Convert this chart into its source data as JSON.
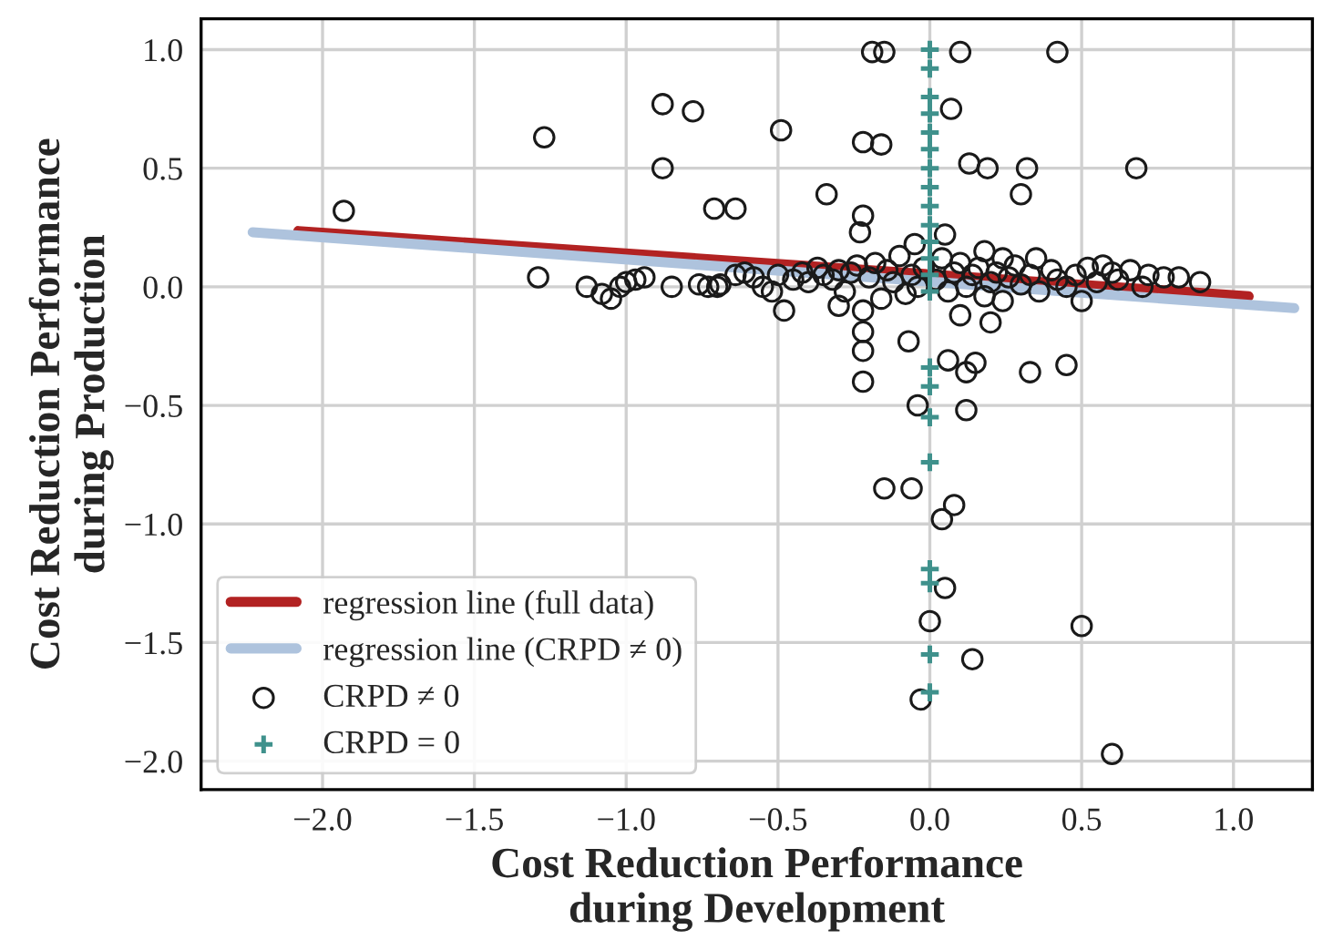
{
  "chart_data": {
    "type": "scatter",
    "xlabel": "Cost Reduction Performance\nduring Development",
    "ylabel": "Cost Reduction Performance\nduring Production",
    "xlim": [
      -2.4,
      1.26
    ],
    "ylim": [
      -2.12,
      1.13
    ],
    "xticks": [
      {
        "value": -2.0,
        "label": "−2.0"
      },
      {
        "value": -1.5,
        "label": "−1.5"
      },
      {
        "value": -1.0,
        "label": "−1.0"
      },
      {
        "value": -0.5,
        "label": "−0.5"
      },
      {
        "value": 0.0,
        "label": "0.0"
      },
      {
        "value": 0.5,
        "label": "0.5"
      },
      {
        "value": 1.0,
        "label": "1.0"
      }
    ],
    "yticks": [
      {
        "value": -2.0,
        "label": "−2.0"
      },
      {
        "value": -1.5,
        "label": "−1.5"
      },
      {
        "value": -1.0,
        "label": "−1.0"
      },
      {
        "value": -0.5,
        "label": "−0.5"
      },
      {
        "value": 0.0,
        "label": "0.0"
      },
      {
        "value": 0.5,
        "label": "0.5"
      },
      {
        "value": 1.0,
        "label": "1.0"
      }
    ],
    "grid": true,
    "legend": "bottom left",
    "series": [
      {
        "name": "regression line (full data)",
        "type": "line",
        "color": "#b22222",
        "marker": "none",
        "line_style": "solid",
        "x": [
          -2.08,
          1.05
        ],
        "values": [
          0.235,
          -0.04
        ]
      },
      {
        "name": "regression line (CRPD ≠ 0)",
        "type": "line",
        "color": "#aec3dd",
        "marker": "none",
        "line_style": "solid",
        "x": [
          -2.23,
          1.2
        ],
        "values": [
          0.23,
          -0.09
        ]
      },
      {
        "name": "CRPD ≠ 0",
        "color": "#1a1a1a",
        "marker": "circle",
        "x": [
          -1.93,
          -1.27,
          -1.29,
          -0.88,
          -0.78,
          -0.88,
          -0.71,
          -0.64,
          -0.49,
          -0.19,
          -0.15,
          0.1,
          0.42,
          0.07,
          -0.22,
          -0.16,
          0.32,
          0.68,
          0.13,
          0.19,
          0.3,
          -0.34,
          -0.22,
          -0.23,
          -0.22,
          -0.07,
          -0.22,
          0.06,
          0.12,
          0.15,
          0.33,
          0.45,
          -0.22,
          -0.04,
          0.12,
          -0.15,
          -0.06,
          0.08,
          0.04,
          0.05,
          0.0,
          0.5,
          0.14,
          -0.03,
          0.6,
          -1.13,
          -1.08,
          -1.05,
          -1.02,
          -1.0,
          -0.97,
          -0.94,
          -0.85,
          -0.76,
          -0.73,
          -0.7,
          -0.69,
          -0.64,
          -0.61,
          -0.58,
          -0.55,
          -0.52,
          -0.5,
          -0.48,
          -0.45,
          -0.42,
          -0.4,
          -0.37,
          -0.35,
          -0.32,
          -0.3,
          -0.28,
          -0.26,
          -0.24,
          -0.22,
          -0.2,
          -0.18,
          -0.16,
          -0.14,
          -0.12,
          -0.1,
          -0.08,
          -0.06,
          -0.04,
          -0.02,
          0.02,
          0.04,
          0.06,
          0.08,
          0.1,
          0.12,
          0.14,
          0.16,
          0.18,
          0.2,
          0.22,
          0.24,
          0.26,
          0.28,
          0.3,
          0.33,
          0.36,
          0.4,
          0.42,
          0.45,
          0.48,
          0.52,
          0.55,
          0.57,
          0.6,
          0.62,
          0.66,
          0.7,
          0.72,
          0.77,
          0.82,
          0.89,
          0.24,
          0.05,
          -0.05,
          0.18,
          0.35,
          0.1,
          -0.3,
          0.2,
          0.5
        ],
        "values": [
          0.32,
          0.63,
          0.04,
          0.77,
          0.74,
          0.5,
          0.33,
          0.33,
          0.66,
          0.99,
          0.99,
          0.99,
          0.99,
          0.75,
          0.61,
          0.6,
          0.5,
          0.5,
          0.52,
          0.5,
          0.39,
          0.39,
          0.3,
          0.23,
          -0.19,
          -0.23,
          -0.27,
          -0.31,
          -0.36,
          -0.32,
          -0.36,
          -0.33,
          -0.4,
          -0.5,
          -0.52,
          -0.85,
          -0.85,
          -0.92,
          -0.98,
          -1.27,
          -1.41,
          -1.43,
          -1.57,
          -1.74,
          -1.97,
          0.0,
          -0.03,
          -0.05,
          0.0,
          0.02,
          0.03,
          0.04,
          0.0,
          0.01,
          0.0,
          0.0,
          0.01,
          0.05,
          0.06,
          0.04,
          0.0,
          -0.02,
          0.05,
          -0.1,
          0.03,
          0.06,
          0.02,
          0.08,
          0.05,
          0.03,
          0.07,
          -0.02,
          0.06,
          0.09,
          -0.1,
          0.04,
          0.1,
          -0.05,
          0.07,
          0.02,
          0.13,
          -0.03,
          0.05,
          0.0,
          0.08,
          0.03,
          0.12,
          -0.02,
          0.06,
          0.1,
          0.0,
          0.05,
          0.08,
          -0.04,
          0.02,
          0.06,
          -0.06,
          0.04,
          0.09,
          0.01,
          0.05,
          -0.02,
          0.07,
          0.03,
          0.0,
          0.05,
          0.08,
          0.02,
          0.09,
          0.06,
          0.03,
          0.07,
          0.0,
          0.05,
          0.04,
          0.04,
          0.02,
          0.12,
          0.22,
          0.18,
          0.15,
          0.12,
          -0.12,
          -0.08,
          -0.15,
          -0.06
        ]
      },
      {
        "name": "CRPD = 0",
        "color": "#3f918c",
        "marker": "cross",
        "x": [
          0,
          0,
          0,
          0,
          0,
          0,
          0,
          0,
          0,
          0,
          0,
          0,
          0,
          0,
          0,
          0,
          0,
          0,
          0,
          0,
          0,
          0
        ],
        "values": [
          1.0,
          0.92,
          0.8,
          0.73,
          0.65,
          0.58,
          0.5,
          0.42,
          0.34,
          0.26,
          0.19,
          0.12,
          0.05,
          -0.02,
          -0.34,
          -0.42,
          -0.55,
          -0.74,
          -1.19,
          -1.25,
          -1.55,
          -1.71
        ]
      }
    ]
  }
}
